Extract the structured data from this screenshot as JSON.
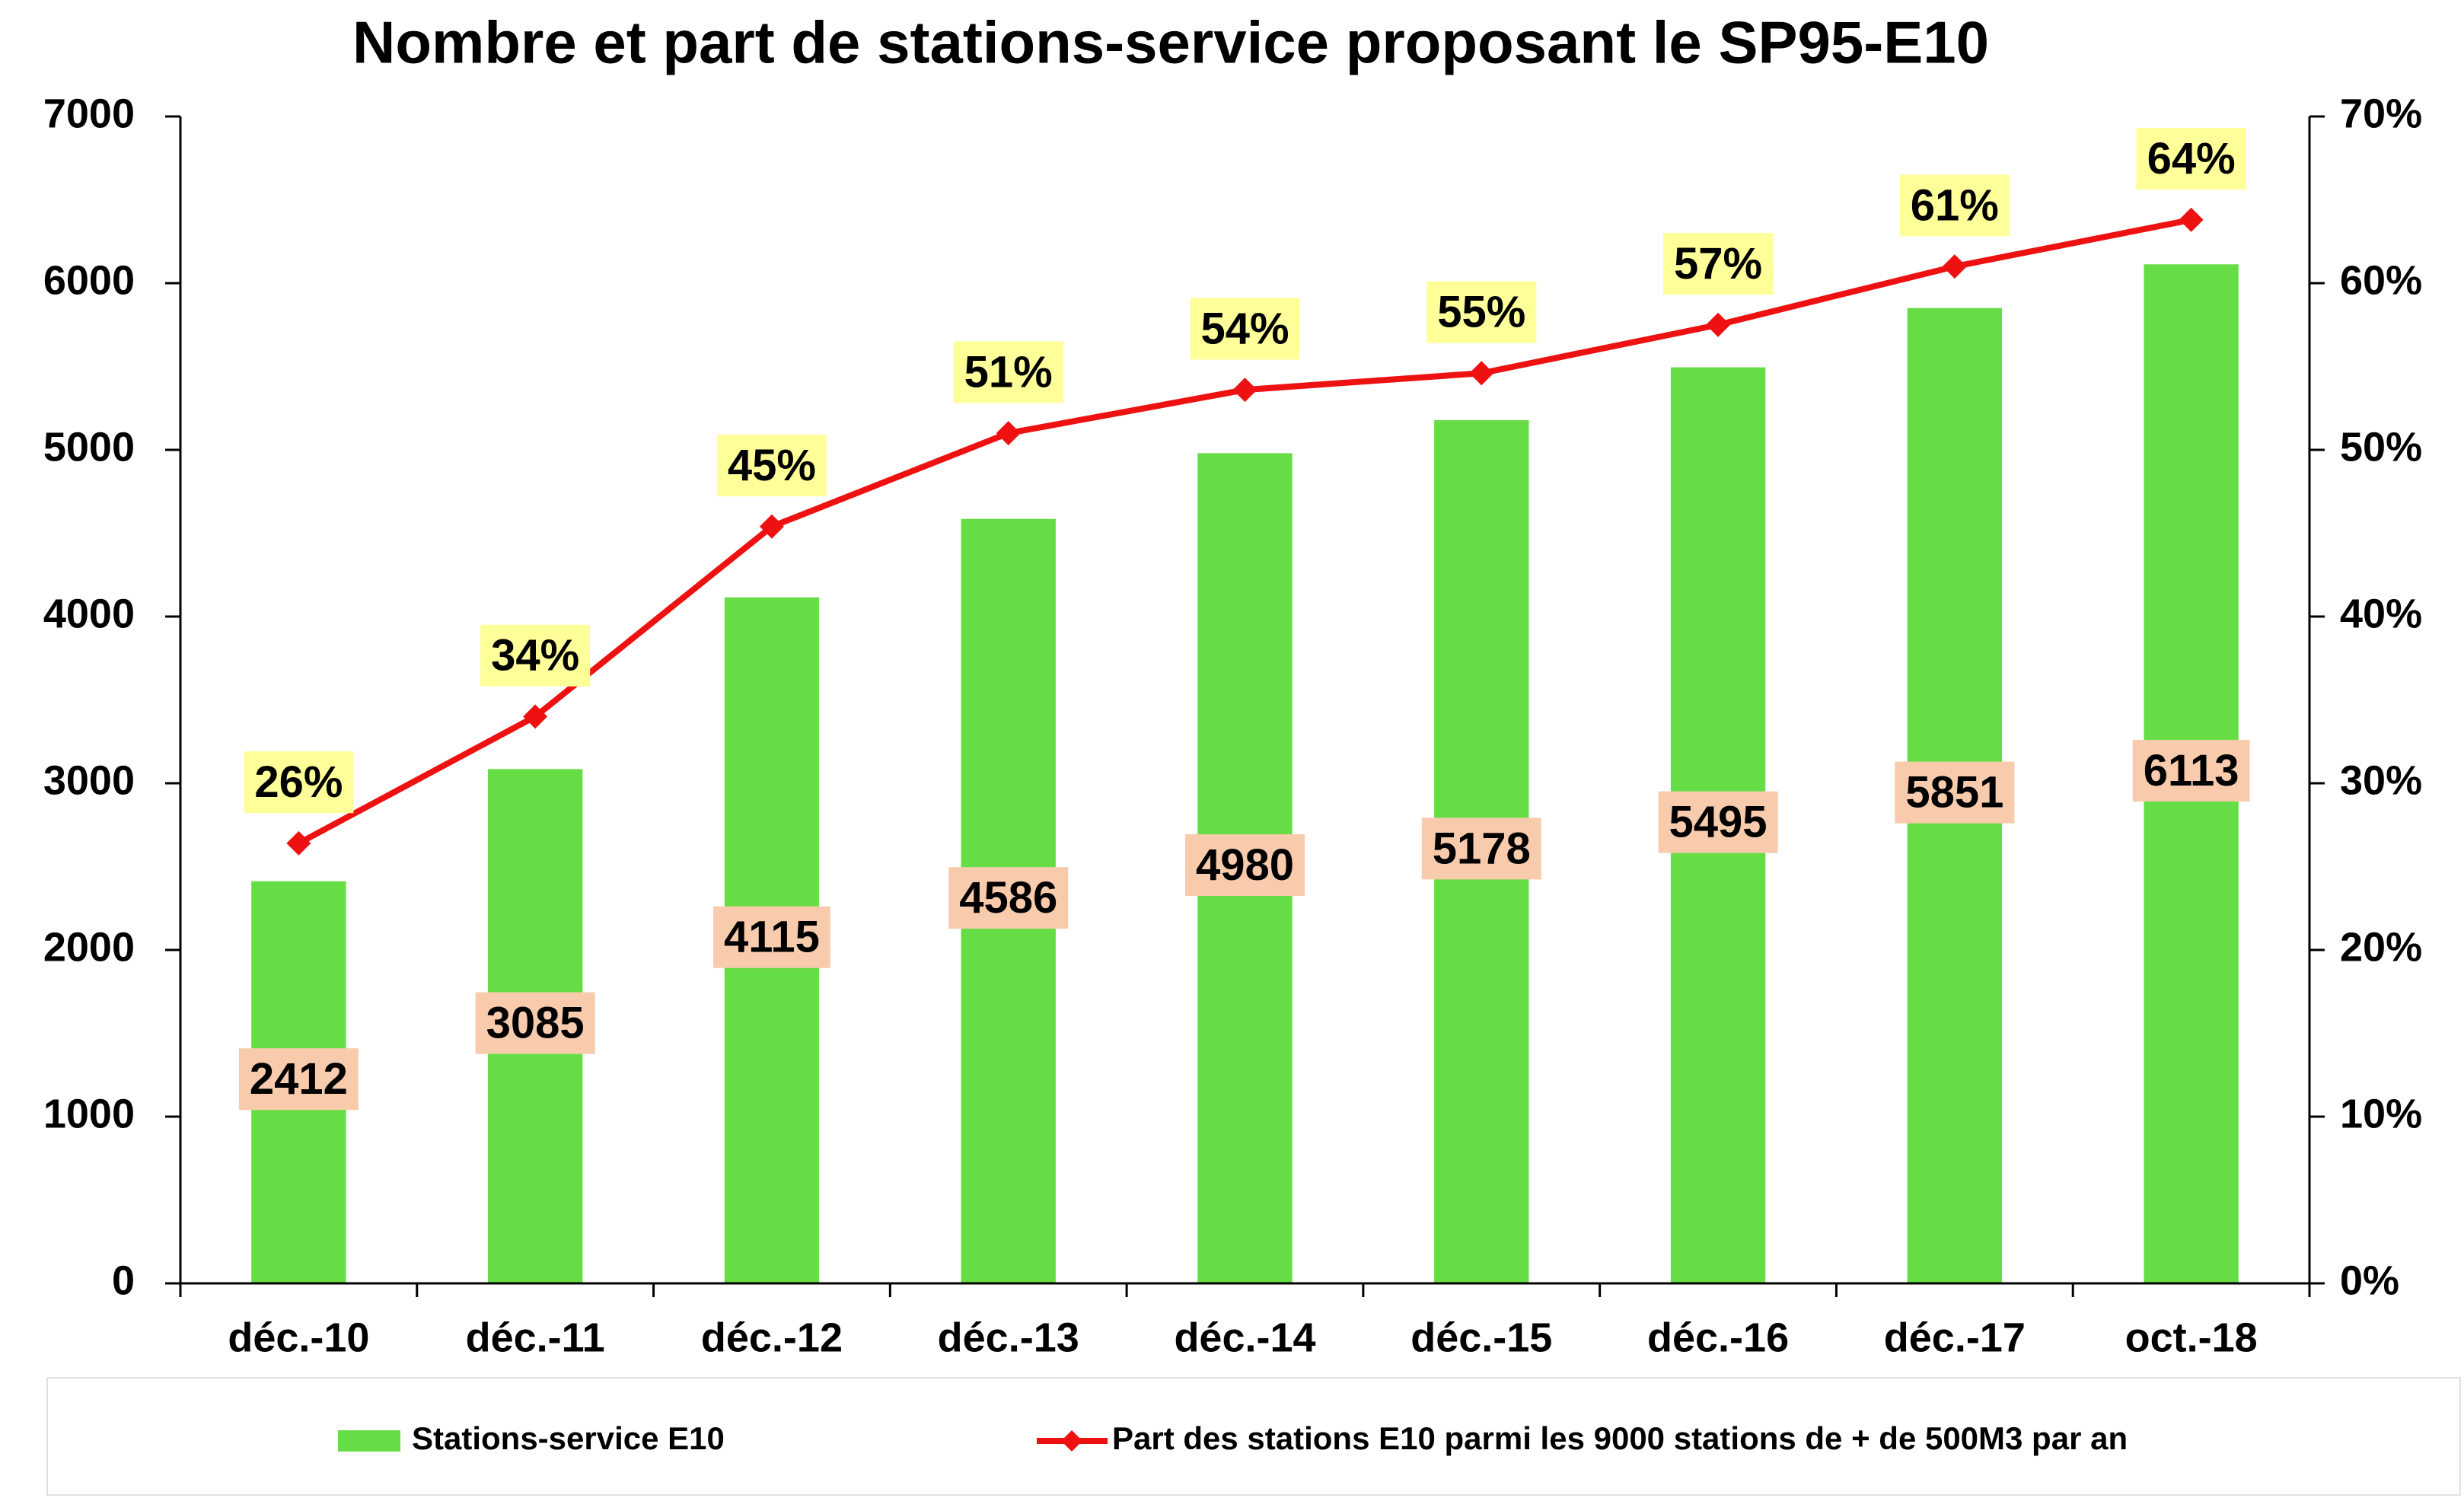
{
  "chart_data": {
    "type": "bar-line",
    "title": "Nombre et part de stations-service proposant le SP95-E10",
    "categories": [
      "déc.-10",
      "déc.-11",
      "déc.-12",
      "déc.-13",
      "déc.-14",
      "déc.-15",
      "déc.-16",
      "déc.-17",
      "oct.-18"
    ],
    "series": [
      {
        "name": "Stations-service E10",
        "type": "bar",
        "color": "#66dd44",
        "values": [
          2412,
          3085,
          4115,
          4586,
          4980,
          5178,
          5495,
          5851,
          6113
        ]
      },
      {
        "name": "Part des stations E10 parmi les 9000 stations de + de 500M3 par an",
        "type": "line",
        "axis": "y2",
        "color": "#ee1111",
        "values": [
          26.4,
          34.0,
          45.4,
          51.0,
          53.6,
          54.6,
          57.5,
          61.0,
          63.8
        ],
        "value_labels": [
          "26%",
          "34%",
          "45%",
          "51%",
          "54%",
          "55%",
          "57%",
          "61%",
          "64%"
        ]
      }
    ],
    "ylim": [
      0,
      7000
    ],
    "yticks": [
      0,
      1000,
      2000,
      3000,
      4000,
      5000,
      6000,
      7000
    ],
    "y2lim": [
      0,
      70
    ],
    "y2ticks": [
      {
        "value": 0,
        "label": "0%"
      },
      {
        "value": 10,
        "label": "10%"
      },
      {
        "value": 20,
        "label": "20%"
      },
      {
        "value": 30,
        "label": "30%"
      },
      {
        "value": 40,
        "label": "40%"
      },
      {
        "value": 50,
        "label": "50%"
      },
      {
        "value": 60,
        "label": "60%"
      },
      {
        "value": 70,
        "label": "70%"
      }
    ],
    "legend": "bottom"
  }
}
